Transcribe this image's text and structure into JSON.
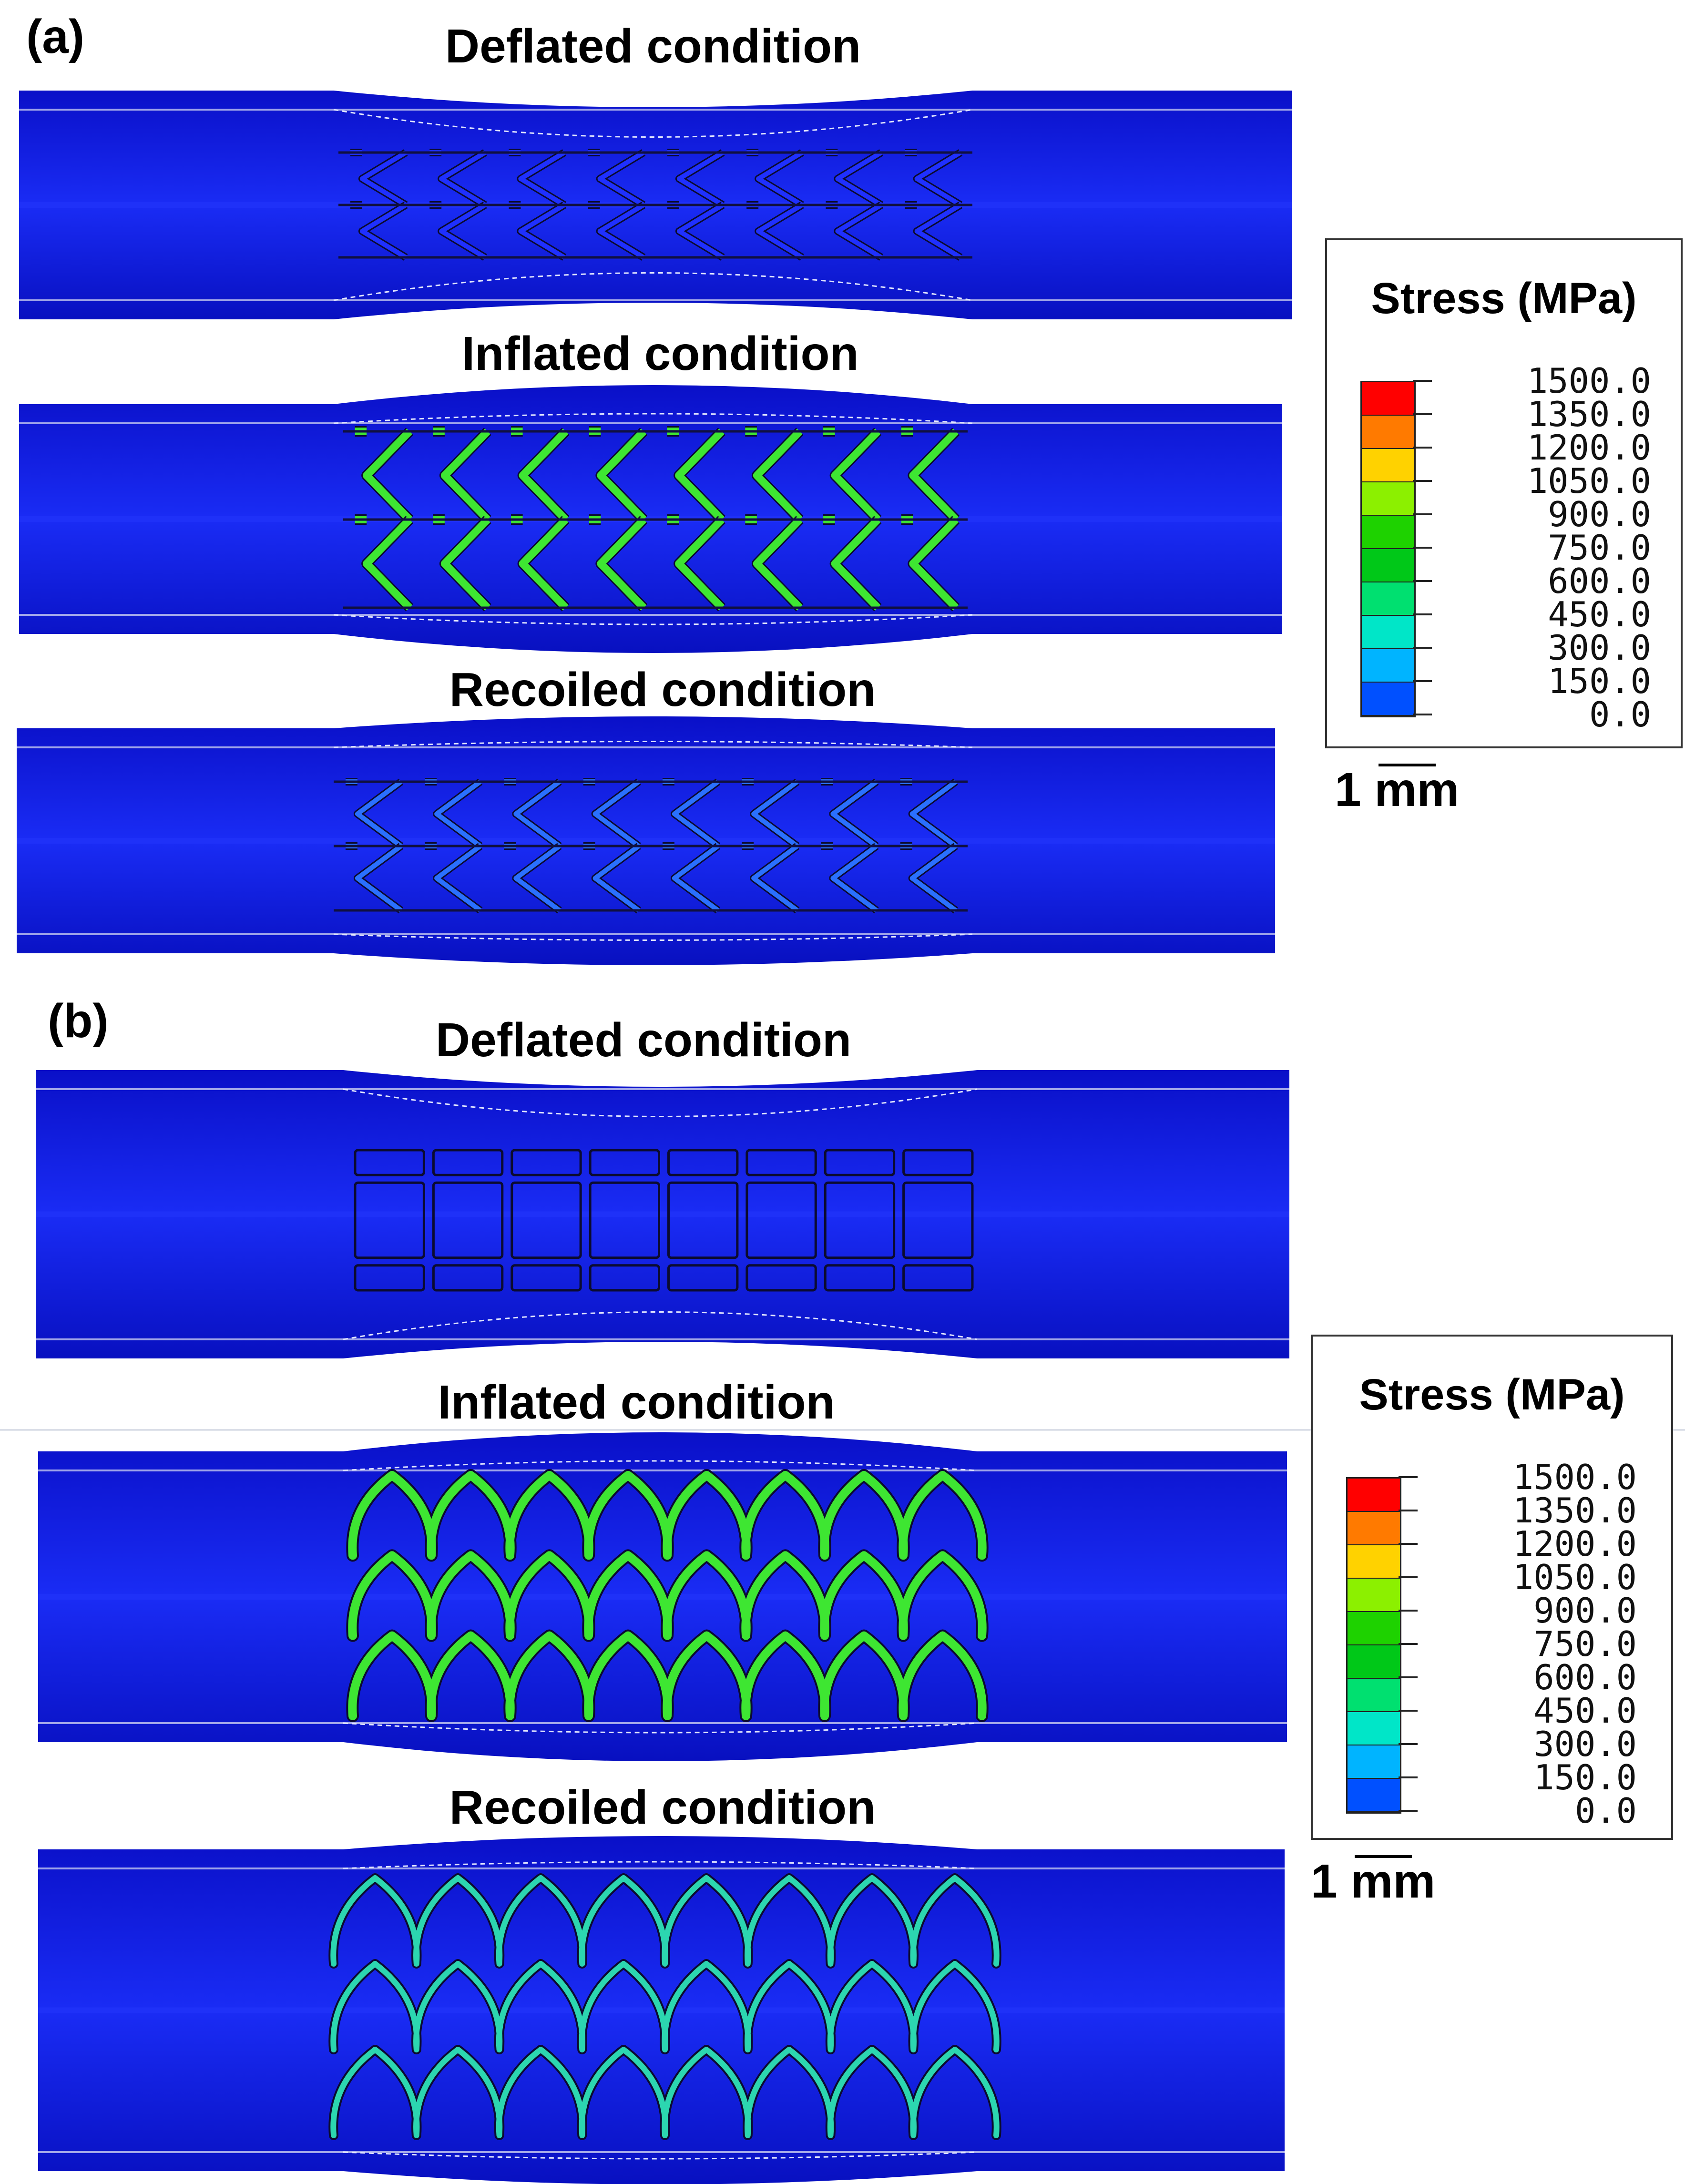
{
  "panel_a": {
    "label": "(a)",
    "conditions": [
      "Deflated condition",
      "Inflated condition",
      "Recoiled condition"
    ],
    "legend_title": "Stress (MPa)",
    "legend_values": [
      "1500.0",
      "1350.0",
      "1200.0",
      "1050.0",
      "900.0",
      "750.0",
      "600.0",
      "450.0",
      "300.0",
      "150.0",
      "0.0"
    ],
    "scale_label": "1 mm"
  },
  "panel_b": {
    "label": "(b)",
    "conditions": [
      "Deflated condition",
      "Inflated condition",
      "Recoiled condition"
    ],
    "legend_title": "Stress (MPa)",
    "legend_values": [
      "1500.0",
      "1350.0",
      "1200.0",
      "1050.0",
      "900.0",
      "750.0",
      "600.0",
      "450.0",
      "300.0",
      "150.0",
      "0.0"
    ],
    "scale_label": "1 mm"
  },
  "colormap": [
    "#ff0000",
    "#ff7a00",
    "#ffd200",
    "#8cf000",
    "#1ed200",
    "#00c818",
    "#00e070",
    "#00e6c8",
    "#00b4ff",
    "#0050ff",
    "#0000ff"
  ],
  "colors": {
    "vessel": "#0a14e6",
    "vessel_dark": "#0608b4",
    "stent_high": "#3ee632",
    "stent_mid": "#2be0a8",
    "outline": "#111133"
  }
}
